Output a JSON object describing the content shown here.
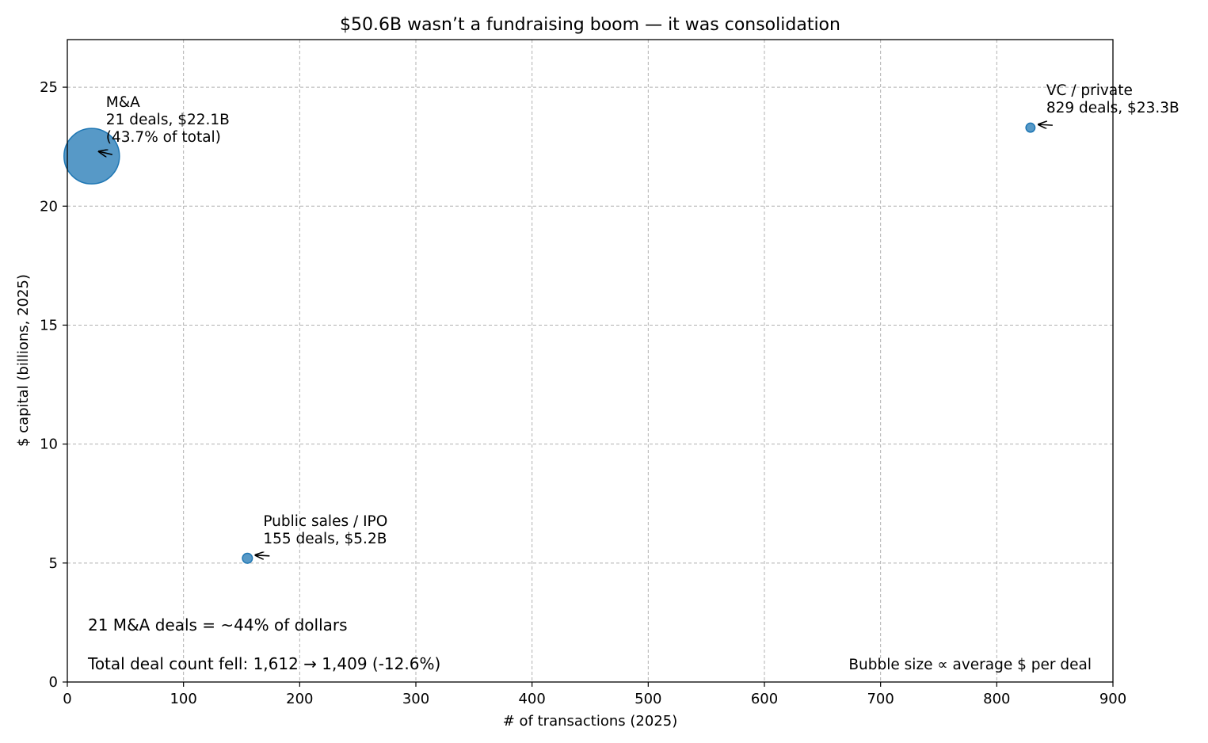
{
  "chart_data": {
    "type": "scatter",
    "title": "$50.6B wasn’t a fundraising boom — it was consolidation",
    "xlabel": "# of transactions (2025)",
    "ylabel": "$ capital (billions, 2025)",
    "xlim": [
      0,
      900
    ],
    "ylim": [
      0,
      27
    ],
    "xticks": [
      0,
      100,
      200,
      300,
      400,
      500,
      600,
      700,
      800,
      900
    ],
    "yticks": [
      0,
      5,
      10,
      15,
      20,
      25
    ],
    "grid": true,
    "bubble_color": "#1f77b4",
    "points": [
      {
        "name": "M&A",
        "x": 21,
        "y": 22.1,
        "avg_per_deal_b": 1.052,
        "label_lines": [
          "M&A",
          "21 deals, $22.1B",
          "(43.7% of total)"
        ]
      },
      {
        "name": "Public sales / IPO",
        "x": 155,
        "y": 5.2,
        "avg_per_deal_b": 0.034,
        "label_lines": [
          "Public sales / IPO",
          "155 deals, $5.2B"
        ]
      },
      {
        "name": "VC / private",
        "x": 829,
        "y": 23.3,
        "avg_per_deal_b": 0.028,
        "label_lines": [
          "VC / private",
          "829 deals, $23.3B"
        ]
      }
    ],
    "notes": {
      "share": "21 M&A deals = ~44% of dollars",
      "count": "Total deal count fell: 1,612 → 1,409 (-12.6%)",
      "bubble_legend": "Bubble size ∝ average $ per deal"
    }
  }
}
